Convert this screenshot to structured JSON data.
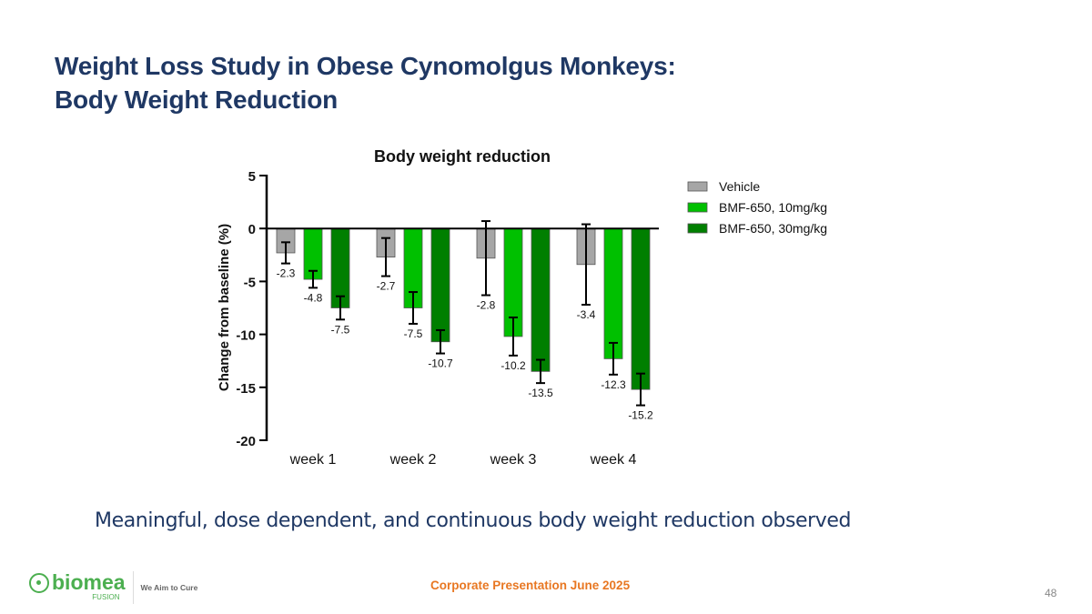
{
  "slide": {
    "title_line1": "Weight Loss Study in Obese Cynomolgus Monkeys:",
    "title_line2": "Body Weight Reduction",
    "caption": "Meaningful, dose dependent, and continuous body weight reduction observed"
  },
  "footer": {
    "logo_word": "biomea",
    "logo_sub": "FUSION",
    "tagline": "We Aim to Cure",
    "center_text": "Corporate Presentation June 2025",
    "page_number": "48"
  },
  "chart_data": {
    "type": "bar",
    "title": "Body weight reduction",
    "xlabel": "",
    "ylabel": "Change from baseline (%)",
    "ylim": [
      -20,
      5
    ],
    "yticks": [
      5,
      0,
      -5,
      -10,
      -15,
      -20
    ],
    "ytick_labels": [
      "5",
      "0",
      "-5",
      "-10",
      "-15",
      "-20"
    ],
    "categories": [
      "week 1",
      "week 2",
      "week 3",
      "week 4"
    ],
    "grid": false,
    "legend_position": "top-right",
    "series": [
      {
        "name": "Vehicle",
        "color": "#a6a6a6",
        "values": [
          -2.3,
          -2.7,
          -2.8,
          -3.4
        ],
        "errors": [
          1.0,
          1.8,
          3.5,
          3.8
        ],
        "labels": [
          "-2.3",
          "-2.7",
          "-2.8",
          "-3.4"
        ]
      },
      {
        "name": "BMF-650, 10mg/kg",
        "color": "#00c000",
        "values": [
          -4.8,
          -7.5,
          -10.2,
          -12.3
        ],
        "errors": [
          0.8,
          1.5,
          1.8,
          1.5
        ],
        "labels": [
          "-4.8",
          "-7.5",
          "-10.2",
          "-12.3"
        ]
      },
      {
        "name": "BMF-650, 30mg/kg",
        "color": "#007f00",
        "values": [
          -7.5,
          -10.7,
          -13.5,
          -15.2
        ],
        "errors": [
          1.1,
          1.1,
          1.1,
          1.5
        ],
        "labels": [
          "-7.5",
          "-10.7",
          "-13.5",
          "-15.2"
        ]
      }
    ]
  }
}
